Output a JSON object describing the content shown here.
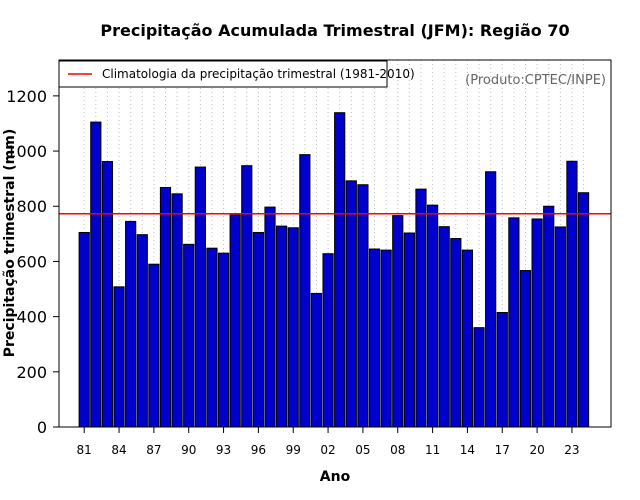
{
  "chart_data": {
    "type": "bar",
    "title": "Precipitação Acumulada Trimestral (JFM): Região 70",
    "xlabel": "Ano",
    "ylabel": "Precipitação trimestral (mm)",
    "source_note": "(Produto:CPTEC/INPE)",
    "legend_label": "Climatologia da precipitação trimestral (1981-2010)",
    "legend_position": "top-left",
    "climatology": 773,
    "ylim": [
      0,
      1330
    ],
    "yticks": [
      0,
      200,
      400,
      600,
      800,
      1000,
      1200
    ],
    "ytick_labels": [
      "0",
      "200",
      "400",
      "600",
      "800",
      "1000",
      "1200"
    ],
    "grid": "vertical dotted",
    "categories": [
      "81",
      "82",
      "83",
      "84",
      "85",
      "86",
      "87",
      "88",
      "89",
      "90",
      "91",
      "92",
      "93",
      "94",
      "95",
      "96",
      "97",
      "98",
      "99",
      "00",
      "01",
      "02",
      "03",
      "04",
      "05",
      "06",
      "07",
      "08",
      "09",
      "10",
      "11",
      "12",
      "13",
      "14",
      "15",
      "16",
      "17",
      "18",
      "19",
      "20",
      "21",
      "22",
      "23",
      "24"
    ],
    "xtick_labels": [
      "81",
      "84",
      "87",
      "90",
      "93",
      "96",
      "99",
      "02",
      "05",
      "08",
      "11",
      "14",
      "17",
      "20",
      "23"
    ],
    "values": [
      705,
      1105,
      962,
      508,
      745,
      697,
      590,
      868,
      845,
      662,
      942,
      648,
      630,
      768,
      947,
      705,
      797,
      728,
      722,
      987,
      484,
      628,
      1139,
      892,
      878,
      645,
      641,
      766,
      703,
      862,
      804,
      726,
      683,
      641,
      360,
      925,
      415,
      758,
      567,
      754,
      800,
      725,
      963,
      849
    ],
    "colors": {
      "bar": "#0000cc",
      "bar_edge": "#000000",
      "climatology": "#ff0000",
      "grid": "#bebebe"
    }
  }
}
